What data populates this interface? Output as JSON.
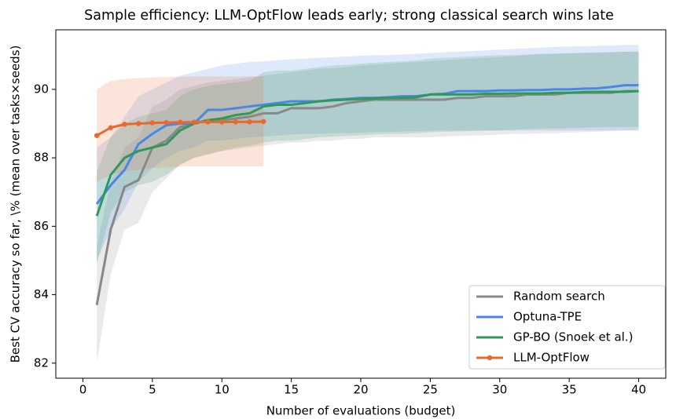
{
  "chart_data": {
    "type": "line",
    "title": "Sample efficiency: LLM-OptFlow leads early; strong classical search wins late",
    "xlabel": "Number of evaluations (budget)",
    "ylabel": "Best CV accuracy so far, \\% (mean over tasks×seeds)",
    "xlim": [
      -1.95,
      41.95
    ],
    "xticks": [
      0,
      5,
      10,
      15,
      20,
      25,
      30,
      35,
      40
    ],
    "ylim": [
      81.56,
      91.74
    ],
    "yticks": [
      82,
      84,
      86,
      88,
      90
    ],
    "grid": false,
    "legend": "lower right",
    "series": [
      {
        "name": "Random search",
        "color": "#888888",
        "marker": false,
        "x": [
          1,
          2,
          3,
          4,
          5,
          6,
          7,
          8,
          9,
          10,
          11,
          12,
          13,
          14,
          15,
          16,
          17,
          18,
          19,
          20,
          21,
          22,
          23,
          24,
          25,
          26,
          27,
          28,
          29,
          30,
          31,
          32,
          33,
          34,
          35,
          36,
          37,
          38,
          39,
          40
        ],
        "values": [
          83.7,
          85.9,
          87.15,
          87.35,
          88.3,
          88.5,
          88.9,
          89.0,
          89.1,
          89.1,
          89.15,
          89.2,
          89.3,
          89.3,
          89.45,
          89.45,
          89.45,
          89.5,
          89.6,
          89.65,
          89.7,
          89.7,
          89.7,
          89.7,
          89.7,
          89.7,
          89.75,
          89.75,
          89.8,
          89.8,
          89.8,
          89.85,
          89.85,
          89.85,
          89.9,
          89.9,
          89.9,
          89.9,
          89.95,
          89.95
        ],
        "band_lower": [
          82.0,
          84.6,
          85.9,
          86.1,
          87.0,
          87.4,
          87.8,
          88.0,
          88.1,
          88.2,
          88.25,
          88.3,
          88.35,
          88.4,
          88.45,
          88.45,
          88.5,
          88.5,
          88.55,
          88.55,
          88.6,
          88.6,
          88.6,
          88.6,
          88.6,
          88.62,
          88.64,
          88.65,
          88.66,
          88.68,
          88.7,
          88.7,
          88.72,
          88.72,
          88.74,
          88.75,
          88.76,
          88.78,
          88.8,
          88.8
        ],
        "band_upper": [
          85.4,
          87.3,
          88.3,
          88.6,
          89.5,
          89.7,
          90.0,
          90.1,
          90.2,
          90.25,
          90.3,
          90.35,
          90.4,
          90.45,
          90.5,
          90.55,
          90.6,
          90.62,
          90.65,
          90.7,
          90.72,
          90.75,
          90.78,
          90.8,
          90.82,
          90.85,
          90.88,
          90.9,
          90.92,
          90.95,
          90.97,
          91.0,
          91.02,
          91.03,
          91.05,
          91.06,
          91.07,
          91.08,
          91.1,
          91.1
        ]
      },
      {
        "name": "Optuna-TPE",
        "color": "#4a86e8",
        "marker": false,
        "x": [
          1,
          2,
          3,
          4,
          5,
          6,
          7,
          8,
          9,
          10,
          11,
          12,
          13,
          14,
          15,
          16,
          17,
          18,
          19,
          20,
          21,
          22,
          23,
          24,
          25,
          26,
          27,
          28,
          29,
          30,
          31,
          32,
          33,
          34,
          35,
          36,
          37,
          38,
          39,
          40
        ],
        "values": [
          86.65,
          87.2,
          87.65,
          88.4,
          88.7,
          88.95,
          89.0,
          89.0,
          89.4,
          89.4,
          89.45,
          89.5,
          89.55,
          89.6,
          89.65,
          89.65,
          89.65,
          89.7,
          89.72,
          89.75,
          89.75,
          89.77,
          89.8,
          89.8,
          89.85,
          89.87,
          89.95,
          89.95,
          89.95,
          89.97,
          89.97,
          89.98,
          89.98,
          90.0,
          90.0,
          90.02,
          90.03,
          90.07,
          90.12,
          90.12
        ],
        "band_lower": [
          85.0,
          85.9,
          86.5,
          87.3,
          87.7,
          88.0,
          88.2,
          88.3,
          88.5,
          88.5,
          88.55,
          88.6,
          88.62,
          88.65,
          88.68,
          88.7,
          88.7,
          88.72,
          88.72,
          88.74,
          88.75,
          88.76,
          88.77,
          88.78,
          88.79,
          88.8,
          88.8,
          88.8,
          88.8,
          88.8,
          88.8,
          88.8,
          88.8,
          88.8,
          88.8,
          88.8,
          88.8,
          88.8,
          88.8,
          88.8
        ],
        "band_upper": [
          88.3,
          88.6,
          89.2,
          89.8,
          90.0,
          90.2,
          90.4,
          90.5,
          90.6,
          90.7,
          90.75,
          90.8,
          90.82,
          90.85,
          90.88,
          90.9,
          90.92,
          90.94,
          90.96,
          90.98,
          91.0,
          91.0,
          91.02,
          91.04,
          91.06,
          91.08,
          91.1,
          91.12,
          91.14,
          91.16,
          91.18,
          91.2,
          91.22,
          91.24,
          91.25,
          91.26,
          91.27,
          91.28,
          91.3,
          91.3
        ]
      },
      {
        "name": "GP-BO (Snoek et al.)",
        "color": "#2e9a5a",
        "marker": false,
        "x": [
          1,
          2,
          3,
          4,
          5,
          6,
          7,
          8,
          9,
          10,
          11,
          12,
          13,
          14,
          15,
          16,
          17,
          18,
          19,
          20,
          21,
          22,
          23,
          24,
          25,
          26,
          27,
          28,
          29,
          30,
          31,
          32,
          33,
          34,
          35,
          36,
          37,
          38,
          39,
          40
        ],
        "values": [
          86.3,
          87.5,
          88.0,
          88.2,
          88.3,
          88.4,
          88.8,
          89.0,
          89.1,
          89.15,
          89.25,
          89.3,
          89.5,
          89.55,
          89.55,
          89.6,
          89.65,
          89.68,
          89.7,
          89.72,
          89.73,
          89.75,
          89.75,
          89.77,
          89.85,
          89.85,
          89.85,
          89.85,
          89.87,
          89.87,
          89.88,
          89.88,
          89.88,
          89.9,
          89.9,
          89.92,
          89.93,
          89.93,
          89.93,
          89.95
        ],
        "band_lower": [
          84.9,
          86.4,
          87.0,
          87.2,
          87.3,
          87.5,
          87.8,
          88.0,
          88.1,
          88.2,
          88.3,
          88.35,
          88.45,
          88.5,
          88.5,
          88.55,
          88.6,
          88.62,
          88.64,
          88.66,
          88.68,
          88.7,
          88.7,
          88.72,
          88.75,
          88.76,
          88.77,
          88.78,
          88.8,
          88.8,
          88.82,
          88.84,
          88.85,
          88.86,
          88.87,
          88.88,
          88.89,
          88.9,
          88.9,
          88.9
        ],
        "band_upper": [
          87.6,
          88.6,
          89.0,
          89.2,
          89.3,
          89.4,
          89.8,
          90.0,
          90.1,
          90.15,
          90.2,
          90.25,
          90.5,
          90.55,
          90.55,
          90.6,
          90.65,
          90.7,
          90.72,
          90.75,
          90.78,
          90.8,
          90.82,
          90.84,
          90.9,
          90.92,
          90.94,
          90.96,
          90.98,
          91.0,
          91.0,
          91.02,
          91.04,
          91.05,
          91.06,
          91.07,
          91.08,
          91.09,
          91.1,
          91.1
        ]
      },
      {
        "name": "LLM-OptFlow",
        "color": "#e8692e",
        "marker": true,
        "x": [
          1,
          2,
          3,
          4,
          5,
          6,
          7,
          8,
          9,
          10,
          11,
          12,
          13
        ],
        "values": [
          88.65,
          88.88,
          88.98,
          89.0,
          89.02,
          89.03,
          89.04,
          89.04,
          89.05,
          89.05,
          89.05,
          89.05,
          89.06
        ],
        "band_lower": [
          87.3,
          87.5,
          87.6,
          87.65,
          87.7,
          87.72,
          87.74,
          87.75,
          87.75,
          87.75,
          87.75,
          87.75,
          87.75
        ],
        "band_upper": [
          90.0,
          90.25,
          90.3,
          90.33,
          90.35,
          90.36,
          90.37,
          90.38,
          90.38,
          90.38,
          90.38,
          90.38,
          90.38
        ]
      }
    ]
  }
}
